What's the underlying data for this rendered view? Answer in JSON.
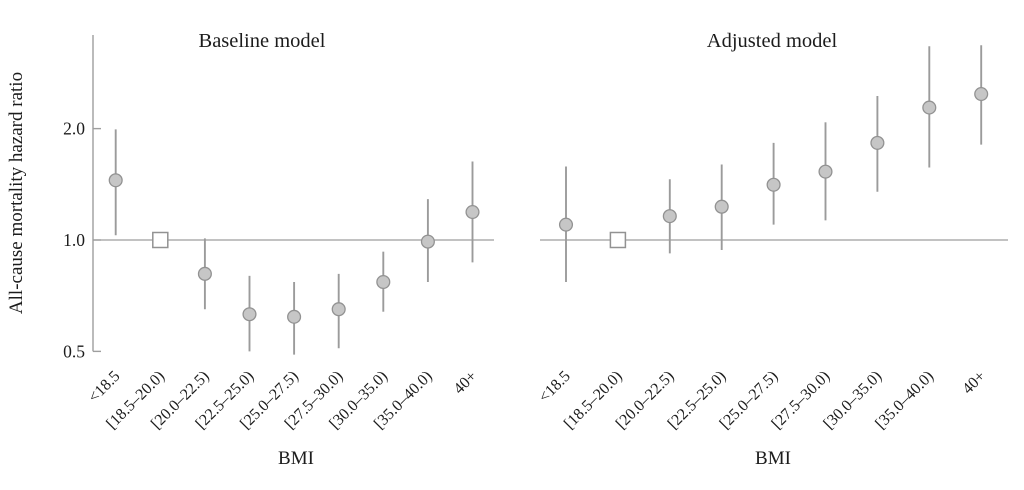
{
  "figure": {
    "ylabel": "All-cause mortality hazard ratio",
    "xlabel": "BMI",
    "colors": {
      "line_gray": "#9b9b9b",
      "axis_gray": "#9e9e9e",
      "marker_fill": "#c6c6c6",
      "marker_stroke": "#929292",
      "reference_marker_fill": "#ffffff",
      "text": "#1c1c1c",
      "background": "#ffffff"
    }
  },
  "chart_data": {
    "type": "scatter",
    "subtype": "forest-plot-errorbars",
    "y_scale": "log",
    "ylim": [
      0.45,
      3.7
    ],
    "yticks": [
      0.5,
      1.0,
      2.0
    ],
    "ytick_labels": [
      "0.5",
      "1.0",
      "2.0"
    ],
    "grid": false,
    "legend": "none",
    "reference_line": 1.0,
    "reference_category": "[18.5–20.0)",
    "categories": [
      "<18.5",
      "[18.5–20.0)",
      "[20.0–22.5)",
      "[22.5–25.0)",
      "[25.0–27.5)",
      "[27.5–30.0)",
      "[30.0–35.0)",
      "[35.0–40.0)",
      "40+"
    ],
    "panels": [
      {
        "title": "Baseline model",
        "xlabel": "BMI",
        "series": [
          {
            "category": "<18.5",
            "hr": 1.45,
            "lo": 1.03,
            "hi": 1.99,
            "reference": false
          },
          {
            "category": "[18.5–20.0)",
            "hr": 1.0,
            "lo": null,
            "hi": null,
            "reference": true
          },
          {
            "category": "[20.0–22.5)",
            "hr": 0.81,
            "lo": 0.65,
            "hi": 1.01,
            "reference": false
          },
          {
            "category": "[22.5–25.0)",
            "hr": 0.63,
            "lo": 0.5,
            "hi": 0.8,
            "reference": false
          },
          {
            "category": "[25.0–27.5)",
            "hr": 0.62,
            "lo": 0.49,
            "hi": 0.77,
            "reference": false
          },
          {
            "category": "[27.5–30.0)",
            "hr": 0.65,
            "lo": 0.51,
            "hi": 0.81,
            "reference": false
          },
          {
            "category": "[30.0–35.0)",
            "hr": 0.77,
            "lo": 0.64,
            "hi": 0.93,
            "reference": false
          },
          {
            "category": "[35.0–40.0)",
            "hr": 0.99,
            "lo": 0.77,
            "hi": 1.29,
            "reference": false
          },
          {
            "category": "40+",
            "hr": 1.19,
            "lo": 0.87,
            "hi": 1.63,
            "reference": false
          }
        ]
      },
      {
        "title": "Adjusted model",
        "xlabel": "BMI",
        "series": [
          {
            "category": "<18.5",
            "hr": 1.1,
            "lo": 0.77,
            "hi": 1.58,
            "reference": false
          },
          {
            "category": "[18.5–20.0)",
            "hr": 1.0,
            "lo": null,
            "hi": null,
            "reference": true
          },
          {
            "category": "[20.0–22.5)",
            "hr": 1.16,
            "lo": 0.92,
            "hi": 1.46,
            "reference": false
          },
          {
            "category": "[22.5–25.0)",
            "hr": 1.23,
            "lo": 0.94,
            "hi": 1.6,
            "reference": false
          },
          {
            "category": "[25.0–27.5)",
            "hr": 1.41,
            "lo": 1.1,
            "hi": 1.83,
            "reference": false
          },
          {
            "category": "[27.5–30.0)",
            "hr": 1.53,
            "lo": 1.13,
            "hi": 2.08,
            "reference": false
          },
          {
            "category": "[30.0–35.0)",
            "hr": 1.83,
            "lo": 1.35,
            "hi": 2.45,
            "reference": false
          },
          {
            "category": "[35.0–40.0)",
            "hr": 2.28,
            "lo": 1.57,
            "hi": 3.34,
            "reference": false
          },
          {
            "category": "40+",
            "hr": 2.48,
            "lo": 1.81,
            "hi": 3.36,
            "reference": false
          }
        ]
      }
    ]
  }
}
